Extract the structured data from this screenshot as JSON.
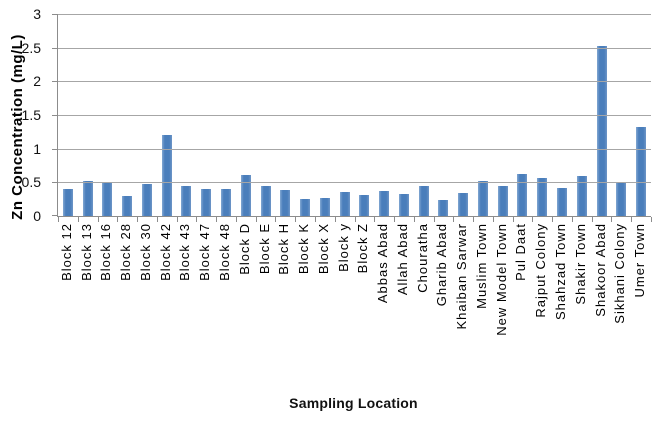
{
  "chart_data": {
    "type": "bar",
    "title": "",
    "xlabel": "Sampling Location",
    "ylabel": "Zn Concentration (mg/L)",
    "categories": [
      "Block 12",
      "Block 13",
      "Block 16",
      "Block 28",
      "Block 30",
      "Block 42",
      "Block 43",
      "Block 47",
      "Block 48",
      "Block D",
      "Block E",
      "Block H",
      "Block K",
      "Block X",
      "Block y",
      "Block Z",
      "Abbas Abad",
      "Allah Abad",
      "Chouratha",
      "Gharib Abad",
      "Khaiban Sarwar",
      "Muslim Town",
      "New Model Town",
      "Pul Daat",
      "Rajput Colony",
      "Shahzad Town",
      "Shakir Town",
      "Shakoor Abad",
      "Sikhani Colony",
      "Umer Town"
    ],
    "values": [
      0.4,
      0.52,
      0.5,
      0.3,
      0.47,
      1.2,
      0.44,
      0.4,
      0.4,
      0.61,
      0.44,
      0.38,
      0.25,
      0.27,
      0.35,
      0.31,
      0.37,
      0.32,
      0.45,
      0.24,
      0.34,
      0.52,
      0.44,
      0.62,
      0.56,
      0.42,
      0.6,
      2.52,
      0.5,
      1.32
    ],
    "ylim": [
      0,
      3
    ],
    "yticks": [
      0,
      0.5,
      1,
      1.5,
      2,
      2.5,
      3
    ],
    "grid": true,
    "legend_position": "none",
    "bar_color": "#4a7ebb",
    "bar_edge_color": "#82a7d2",
    "gridline_color": "#a6a6a6",
    "axis_color": "#8c8c8c"
  }
}
